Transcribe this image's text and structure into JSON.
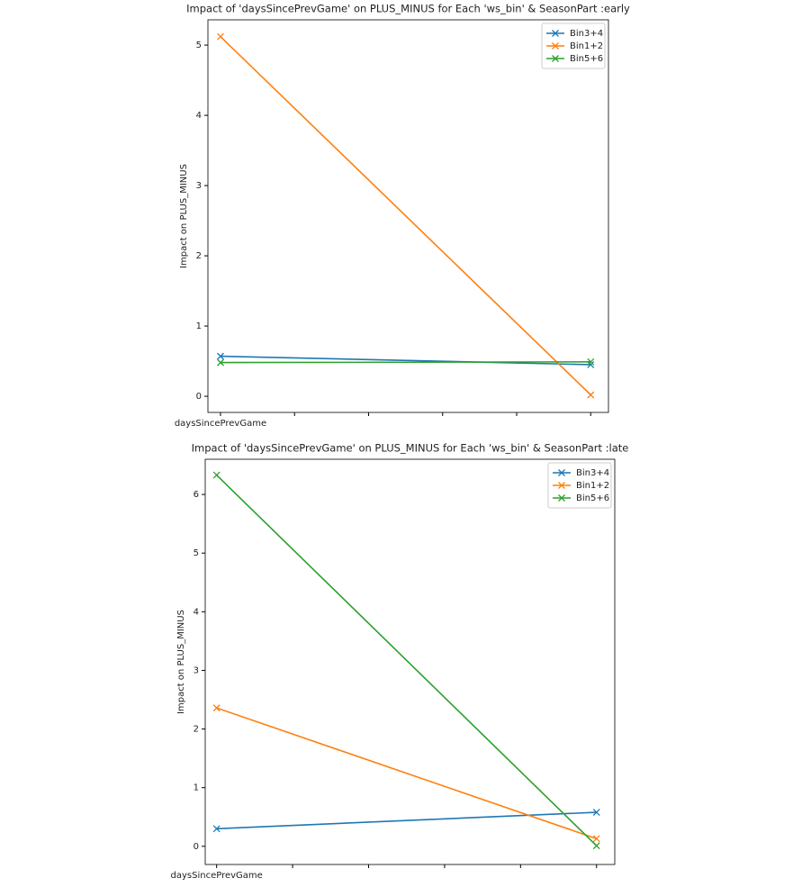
{
  "chart_data": [
    {
      "type": "line",
      "title": "Impact of 'daysSincePrevGame' on PLUS_MINUS for Each 'ws_bin' & SeasonPart :early",
      "y_label": "Impact on PLUS_MINUS",
      "x": [
        0,
        5
      ],
      "xlim": [
        -0.17,
        5.24
      ],
      "xticks": [
        {
          "value": 0,
          "label": "daysSincePrevGame"
        },
        {
          "value": 1,
          "label": null
        },
        {
          "value": 2,
          "label": null
        },
        {
          "value": 3,
          "label": null
        },
        {
          "value": 4,
          "label": null
        },
        {
          "value": 5,
          "label": null
        }
      ],
      "ylim": [
        -0.23,
        5.36
      ],
      "yticks": [
        0,
        1,
        2,
        3,
        4,
        5
      ],
      "legend": "upper right",
      "series": [
        {
          "name": "Bin3+4",
          "color": "#1f77b4",
          "values": [
            0.57,
            0.45
          ]
        },
        {
          "name": "Bin1+2",
          "color": "#ff7f0e",
          "values": [
            5.12,
            0.02
          ]
        },
        {
          "name": "Bin5+6",
          "color": "#2ca02c",
          "values": [
            0.48,
            0.49
          ]
        }
      ]
    },
    {
      "type": "line",
      "title": "Impact of 'daysSincePrevGame' on PLUS_MINUS for Each 'ws_bin' & SeasonPart :late",
      "y_label": "Impact on PLUS_MINUS",
      "x": [
        0,
        5
      ],
      "xlim": [
        -0.15,
        5.24
      ],
      "xticks": [
        {
          "value": 0,
          "label": "daysSincePrevGame"
        },
        {
          "value": 1,
          "label": null
        },
        {
          "value": 2,
          "label": null
        },
        {
          "value": 3,
          "label": null
        },
        {
          "value": 4,
          "label": null
        },
        {
          "value": 5,
          "label": null
        }
      ],
      "ylim": [
        -0.31,
        6.6
      ],
      "yticks": [
        0,
        1,
        2,
        3,
        4,
        5,
        6
      ],
      "legend": "upper right",
      "series": [
        {
          "name": "Bin3+4",
          "color": "#1f77b4",
          "values": [
            0.3,
            0.58
          ]
        },
        {
          "name": "Bin1+2",
          "color": "#ff7f0e",
          "values": [
            2.36,
            0.13
          ]
        },
        {
          "name": "Bin5+6",
          "color": "#2ca02c",
          "values": [
            6.33,
            0.01
          ]
        }
      ]
    }
  ]
}
